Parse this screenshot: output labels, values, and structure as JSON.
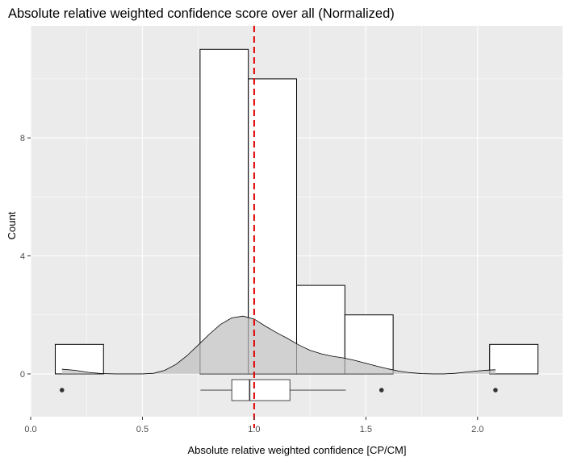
{
  "chart_data": {
    "type": "histogram",
    "title": "Absolute relative weighted confidence score over all (Normalized)",
    "xlabel": "Absolute relative weighted confidence [CP/CM]",
    "ylabel": "Count",
    "xlim": [
      0.0,
      2.38
    ],
    "ylim": [
      -1.45,
      11.8
    ],
    "xticks": [
      0.0,
      0.5,
      1.0,
      1.5,
      2.0
    ],
    "xtick_labels": [
      "0.0",
      "0.5",
      "1.0",
      "1.5",
      "2.0"
    ],
    "yticks": [
      0,
      4,
      8
    ],
    "ytick_labels": [
      "0",
      "4",
      "8"
    ],
    "grid": true,
    "bins": [
      {
        "x0": 0.11,
        "x1": 0.326,
        "count": 1
      },
      {
        "x0": 0.326,
        "x1": 0.542,
        "count": 0
      },
      {
        "x0": 0.542,
        "x1": 0.758,
        "count": 0
      },
      {
        "x0": 0.758,
        "x1": 0.974,
        "count": 11
      },
      {
        "x0": 0.974,
        "x1": 1.19,
        "count": 10
      },
      {
        "x0": 1.19,
        "x1": 1.406,
        "count": 3
      },
      {
        "x0": 1.406,
        "x1": 1.622,
        "count": 2
      },
      {
        "x0": 1.622,
        "x1": 1.838,
        "count": 0
      },
      {
        "x0": 1.838,
        "x1": 2.054,
        "count": 0
      },
      {
        "x0": 2.054,
        "x1": 2.27,
        "count": 1
      }
    ],
    "density": {
      "x": [
        0.14,
        0.2,
        0.26,
        0.32,
        0.38,
        0.44,
        0.5,
        0.55,
        0.6,
        0.65,
        0.7,
        0.75,
        0.8,
        0.85,
        0.9,
        0.95,
        1.0,
        1.05,
        1.1,
        1.15,
        1.2,
        1.25,
        1.3,
        1.35,
        1.4,
        1.45,
        1.5,
        1.55,
        1.6,
        1.65,
        1.7,
        1.75,
        1.8,
        1.85,
        1.9,
        1.95,
        2.0,
        2.05,
        2.08
      ],
      "y": [
        0.16,
        0.12,
        0.05,
        0.01,
        0.0,
        0.0,
        0.0,
        0.02,
        0.12,
        0.32,
        0.62,
        0.98,
        1.35,
        1.68,
        1.9,
        1.96,
        1.86,
        1.62,
        1.4,
        1.2,
        0.98,
        0.8,
        0.68,
        0.6,
        0.54,
        0.46,
        0.36,
        0.26,
        0.17,
        0.09,
        0.04,
        0.01,
        0.0,
        0.0,
        0.02,
        0.06,
        0.1,
        0.13,
        0.14
      ]
    },
    "boxplot": {
      "y": -0.55,
      "whisker_low": 0.76,
      "q1": 0.9,
      "median": 0.98,
      "q3": 1.16,
      "whisker_high": 1.41,
      "outliers": [
        0.14,
        1.57,
        2.08
      ]
    },
    "reference_line": {
      "x": 1.0,
      "color": "#e00000",
      "style": "dashed"
    },
    "colors": {
      "panel_bg": "#ebebeb",
      "grid": "#ffffff",
      "bar_fill": "#ffffff",
      "bar_stroke": "#000000",
      "density_fill": "#bdbdbd"
    }
  }
}
